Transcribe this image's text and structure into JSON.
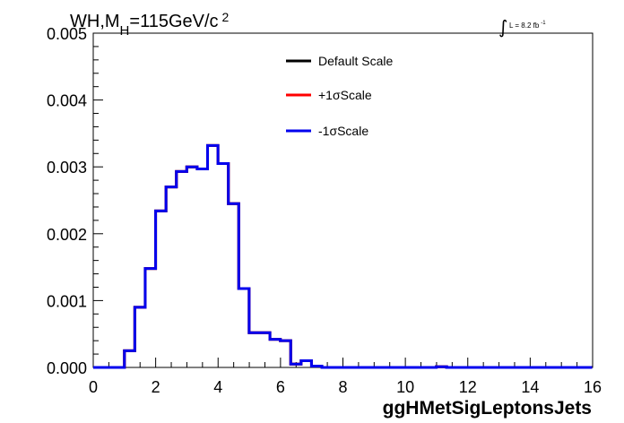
{
  "chart_data": {
    "type": "line",
    "title_parts": {
      "main": "WH,M",
      "sub": "H",
      "rest": "=115GeV/c",
      "sup": "2"
    },
    "lumi": {
      "integral_symbol": "∫",
      "text": "L = 8.2 fb",
      "sup": "-1"
    },
    "xlabel": "ggHMetSigLeptonsJets",
    "ylabel": "",
    "xlim": [
      0,
      16
    ],
    "ylim": [
      0,
      0.005
    ],
    "x_ticks": [
      "0",
      "2",
      "4",
      "6",
      "8",
      "10",
      "12",
      "14",
      "16"
    ],
    "y_ticks": [
      "0.000",
      "0.001",
      "0.002",
      "0.003",
      "0.004",
      "0.005"
    ],
    "bin_width": 0.333,
    "bin_edges_start": 0,
    "series": [
      {
        "name": "Default Scale",
        "color": "#000000",
        "values": [
          0,
          0,
          0,
          0.00025,
          0.0009,
          0.00148,
          0.00234,
          0.0027,
          0.00293,
          0.003,
          0.00297,
          0.00332,
          0.00305,
          0.00245,
          0.00118,
          0.00052,
          0.00052,
          0.00042,
          0.0004,
          5e-05,
          0.0001,
          2e-05,
          0,
          0,
          0,
          0,
          0,
          0,
          0,
          0,
          0,
          0,
          0,
          1e-05,
          0,
          0,
          0,
          0,
          0,
          0,
          0,
          0,
          0,
          0,
          0,
          0,
          0,
          0
        ]
      },
      {
        "name": "+1σScale",
        "color": "#ff0000",
        "values": [
          0,
          0,
          0,
          0.00025,
          0.0009,
          0.00148,
          0.00234,
          0.0027,
          0.00293,
          0.003,
          0.00297,
          0.00332,
          0.00305,
          0.00245,
          0.00118,
          0.00052,
          0.00052,
          0.00042,
          0.0004,
          5e-05,
          0.0001,
          2e-05,
          0,
          0,
          0,
          0,
          0,
          0,
          0,
          0,
          0,
          0,
          0,
          1e-05,
          0,
          0,
          0,
          0,
          0,
          0,
          0,
          0,
          0,
          0,
          0,
          0,
          0,
          0
        ]
      },
      {
        "name": "-1σScale",
        "color": "#0000ee",
        "values": [
          0,
          0,
          0,
          0.00025,
          0.0009,
          0.00148,
          0.00234,
          0.0027,
          0.00293,
          0.003,
          0.00297,
          0.00332,
          0.00305,
          0.00245,
          0.00118,
          0.00052,
          0.00052,
          0.00042,
          0.0004,
          5e-05,
          0.0001,
          2e-05,
          0,
          0,
          0,
          0,
          0,
          0,
          0,
          0,
          0,
          0,
          0,
          1e-05,
          0,
          0,
          0,
          0,
          0,
          0,
          0,
          0,
          0,
          0,
          0,
          0,
          0,
          0
        ]
      }
    ],
    "legend": [
      "Default Scale",
      "+1σScale",
      "-1σScale"
    ],
    "legend_position": "top-right",
    "grid": false
  }
}
